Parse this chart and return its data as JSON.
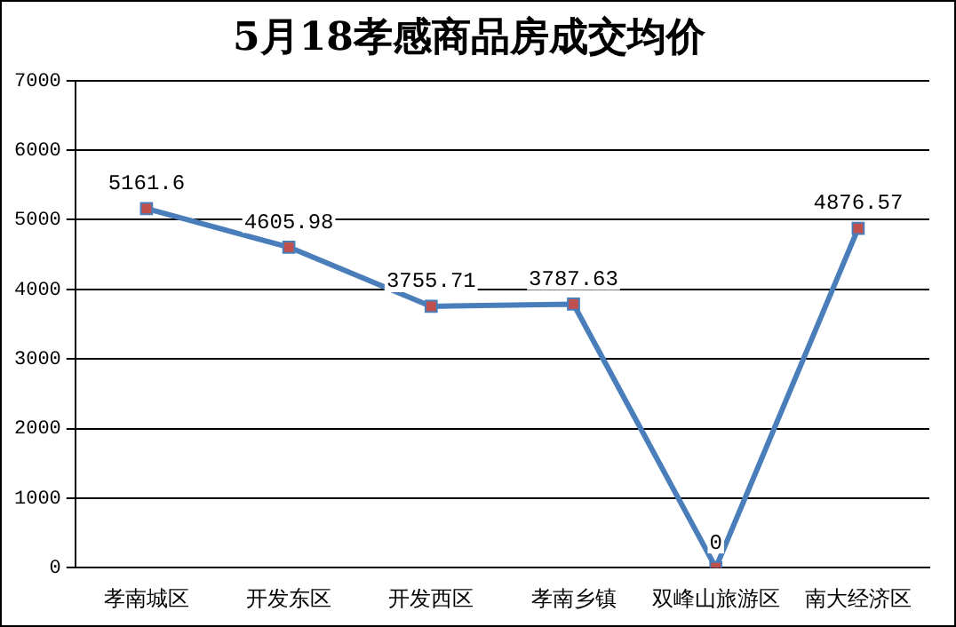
{
  "chart_data": {
    "type": "line",
    "title": "5月18孝感商品房成交均价",
    "categories": [
      "孝南城区",
      "开发东区",
      "开发西区",
      "孝南乡镇",
      "双峰山旅游区",
      "南大经济区"
    ],
    "series": [
      {
        "color": "#4a7ebb",
        "values": [
          5161.6,
          4605.98,
          3755.71,
          3787.63,
          0,
          4876.57
        ]
      }
    ],
    "ylim": [
      0,
      7000
    ],
    "yticks": [
      0,
      1000,
      2000,
      3000,
      4000,
      5000,
      6000,
      7000
    ],
    "grid": "y",
    "marker": "square",
    "line_style": "solid",
    "data_labels": true,
    "legend": false
  }
}
